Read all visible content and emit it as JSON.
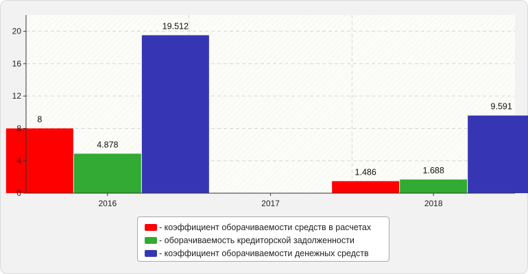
{
  "chart_data": {
    "type": "bar",
    "categories": [
      "2016",
      "2017",
      "2018"
    ],
    "series": [
      {
        "name": "- коэффициент оборачиваемости средств в расчетах",
        "color": "#ff0000",
        "values": [
          8,
          null,
          1.486
        ],
        "labels": [
          "8",
          null,
          "1.486"
        ]
      },
      {
        "name": "- оборачиваемость кредиторской задолженности",
        "color": "#33aa33",
        "values": [
          4.878,
          null,
          1.688
        ],
        "labels": [
          "4.878",
          null,
          "1.688"
        ]
      },
      {
        "name": "- коэффициент оборачиваемости денежных средств",
        "color": "#3636b5",
        "values": [
          19.512,
          null,
          9.591
        ],
        "labels": [
          "19.512",
          null,
          "9.591"
        ]
      }
    ],
    "y_ticks": [
      "0",
      "4",
      "8",
      "12",
      "16",
      "20"
    ],
    "ylim": [
      0,
      22
    ],
    "grid": true,
    "legend_position": "bottom"
  }
}
